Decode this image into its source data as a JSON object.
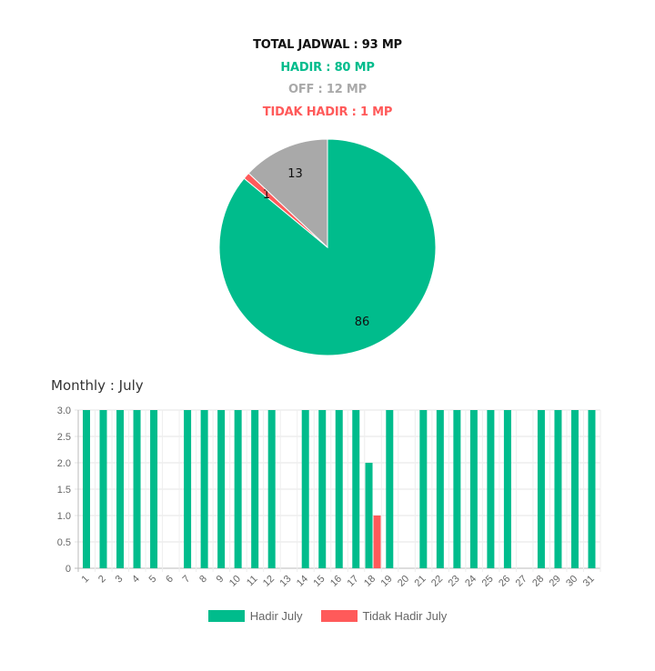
{
  "summary": {
    "total": "TOTAL JADWAL : 93 MP",
    "hadir": "HADIR : 80 MP",
    "off": "OFF : 12 MP",
    "tidak_hadir": "TIDAK HADIR : 1 MP"
  },
  "colors": {
    "hadir": "#00bc8c",
    "off": "#a9a9a9",
    "tidak_hadir": "#ff5a5a"
  },
  "chart_data": [
    {
      "type": "pie",
      "slices": [
        {
          "label": "86",
          "value": 86,
          "color": "#00bc8c"
        },
        {
          "label": "1",
          "value": 1,
          "color": "#ff5a5a"
        },
        {
          "label": "13",
          "value": 13,
          "color": "#a9a9a9"
        }
      ]
    },
    {
      "type": "bar",
      "title": "Monthly : July",
      "categories": [
        "1",
        "2",
        "3",
        "4",
        "5",
        "6",
        "7",
        "8",
        "9",
        "10",
        "11",
        "12",
        "13",
        "14",
        "15",
        "16",
        "17",
        "18",
        "19",
        "20",
        "21",
        "22",
        "23",
        "24",
        "25",
        "26",
        "27",
        "28",
        "29",
        "30",
        "31"
      ],
      "series": [
        {
          "name": "Hadir July",
          "color": "#00bc8c",
          "values": [
            3,
            3,
            3,
            3,
            3,
            0,
            3,
            3,
            3,
            3,
            3,
            3,
            0,
            3,
            3,
            3,
            3,
            2,
            3,
            0,
            3,
            3,
            3,
            3,
            3,
            3,
            0,
            3,
            3,
            3,
            3
          ]
        },
        {
          "name": "Tidak Hadir July",
          "color": "#ff5a5a",
          "values": [
            0,
            0,
            0,
            0,
            0,
            0,
            0,
            0,
            0,
            0,
            0,
            0,
            0,
            0,
            0,
            0,
            0,
            1,
            0,
            0,
            0,
            0,
            0,
            0,
            0,
            0,
            0,
            0,
            0,
            0,
            0
          ]
        }
      ],
      "yticks": [
        "0",
        "0.5",
        "1.0",
        "1.5",
        "2.0",
        "2.5",
        "3.0"
      ],
      "ylim": [
        0,
        3
      ],
      "grid": true,
      "legend": "bottom"
    }
  ]
}
